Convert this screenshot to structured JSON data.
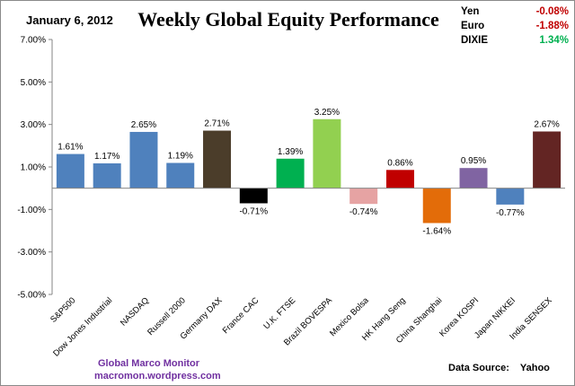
{
  "header": {
    "date": "January 6, 2012",
    "title": "Weekly Global Equity Performance"
  },
  "fx_box": [
    {
      "label": "Yen",
      "value": "-0.08%",
      "color": "#c00000"
    },
    {
      "label": "Euro",
      "value": "-1.88%",
      "color": "#c00000"
    },
    {
      "label": "DIXIE",
      "value": "1.34%",
      "color": "#00b050"
    }
  ],
  "footer": {
    "brand": "Global  Marco  Monitor",
    "url": "macromon.wordpress.com",
    "source": "Data Source:    Yahoo"
  },
  "chart_data": {
    "type": "bar",
    "title": "Weekly Global Equity Performance",
    "ylim": [
      -5,
      7
    ],
    "yticks": [
      7,
      5,
      3,
      1,
      -1,
      -3,
      -5
    ],
    "ytick_labels": [
      "7.00%",
      "5.00%",
      "3.00%",
      "1.00%",
      "-1.00%",
      "-3.00%",
      "-5.00%"
    ],
    "grid": false,
    "categories": [
      "S&P500",
      "Dow Jones Industrial",
      "NASDAQ",
      "Russell 2000",
      "Germany DAX",
      "France CAC",
      "U.K. FTSE",
      "Brazil BOVESPA",
      "Mexico Bolsa",
      "HK Hang Seng",
      "China Shanghai",
      "Korea KOSPI",
      "Japan NIKKEI",
      "India SENSEX"
    ],
    "values": [
      1.61,
      1.17,
      2.65,
      1.19,
      2.71,
      -0.71,
      1.39,
      3.25,
      -0.74,
      0.86,
      -1.64,
      0.95,
      -0.77,
      2.67
    ],
    "data_labels": [
      "1.61%",
      "1.17%",
      "2.65%",
      "1.19%",
      "2.71%",
      "-0.71%",
      "1.39%",
      "3.25%",
      "-0.74%",
      "0.86%",
      "-1.64%",
      "0.95%",
      "-0.77%",
      "2.67%"
    ],
    "colors": [
      "#4f81bd",
      "#4f81bd",
      "#4f81bd",
      "#4f81bd",
      "#4b3d2a",
      "#000000",
      "#00b050",
      "#92d050",
      "#e6a3a3",
      "#c00000",
      "#e36c09",
      "#8064a2",
      "#4f81bd",
      "#632523"
    ]
  }
}
